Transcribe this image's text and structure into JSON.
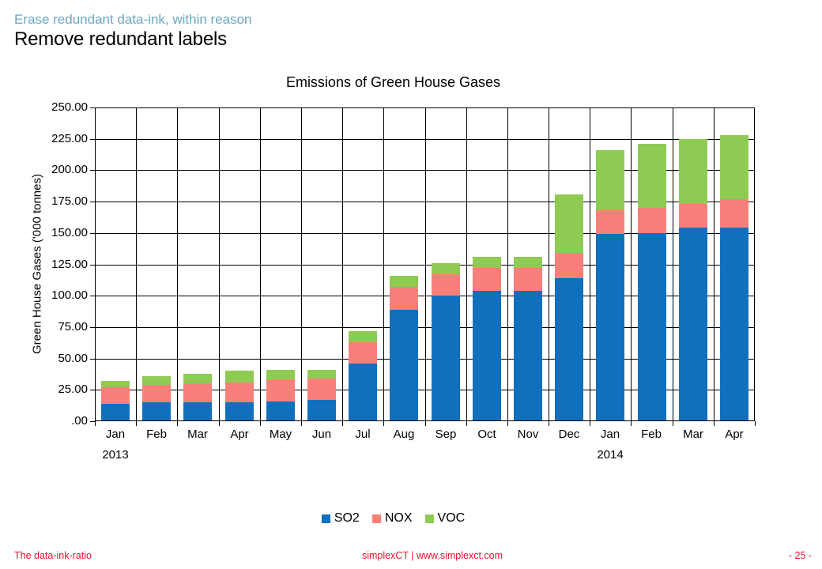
{
  "slide": {
    "kicker": "Erase redundant data-ink, within reason",
    "title": "Remove redundant labels"
  },
  "footer": {
    "left": "The data-ink-ratio",
    "center": "simplexCT  |  www.simplexct.com",
    "right": "- 25 -"
  },
  "colors": {
    "kicker": "#6ba7c4",
    "footer_red": "#e8112d",
    "so2": "#1170bd",
    "nox": "#f9807a",
    "voc": "#8fcb52",
    "axis": "#000000"
  },
  "chart_data": {
    "type": "bar",
    "stacked": true,
    "title": "Emissions of Green House Gases",
    "xlabel": "",
    "ylabel": "Green House Gases ('000 tonnes)",
    "ylim": [
      0,
      250
    ],
    "ytick_step": 25,
    "ytick_labels": [
      "250.00",
      "225.00",
      "200.00",
      "175.00",
      "150.00",
      "125.00",
      "100.00",
      "75.00",
      "50.00",
      "25.00",
      ".00"
    ],
    "grid": true,
    "legend_position": "bottom",
    "categories": [
      "Jan",
      "Feb",
      "Mar",
      "Apr",
      "May",
      "Jun",
      "Jul",
      "Aug",
      "Sep",
      "Oct",
      "Nov",
      "Dec",
      "Jan",
      "Feb",
      "Mar",
      "Apr"
    ],
    "year_labels": [
      {
        "index": 0,
        "label": "2013"
      },
      {
        "index": 12,
        "label": "2014"
      }
    ],
    "series": [
      {
        "name": "SO2",
        "color": "#1170bd",
        "values": [
          14,
          15,
          15,
          15,
          16,
          17,
          46,
          89,
          100,
          104,
          104,
          114,
          149,
          150,
          154,
          154
        ]
      },
      {
        "name": "NOX",
        "color": "#f9807a",
        "values": [
          13,
          14,
          15,
          16,
          17,
          17,
          17,
          18,
          17,
          18,
          18,
          20,
          19,
          20,
          19,
          23
        ]
      },
      {
        "name": "VOC",
        "color": "#8fcb52",
        "values": [
          5,
          7,
          8,
          9,
          8,
          7,
          9,
          9,
          9,
          9,
          9,
          47,
          48,
          51,
          52,
          51
        ]
      }
    ],
    "totals": [
      32,
      36,
      38,
      40,
      41,
      41,
      72,
      116,
      126,
      131,
      131,
      181,
      216,
      221,
      225,
      228
    ]
  }
}
